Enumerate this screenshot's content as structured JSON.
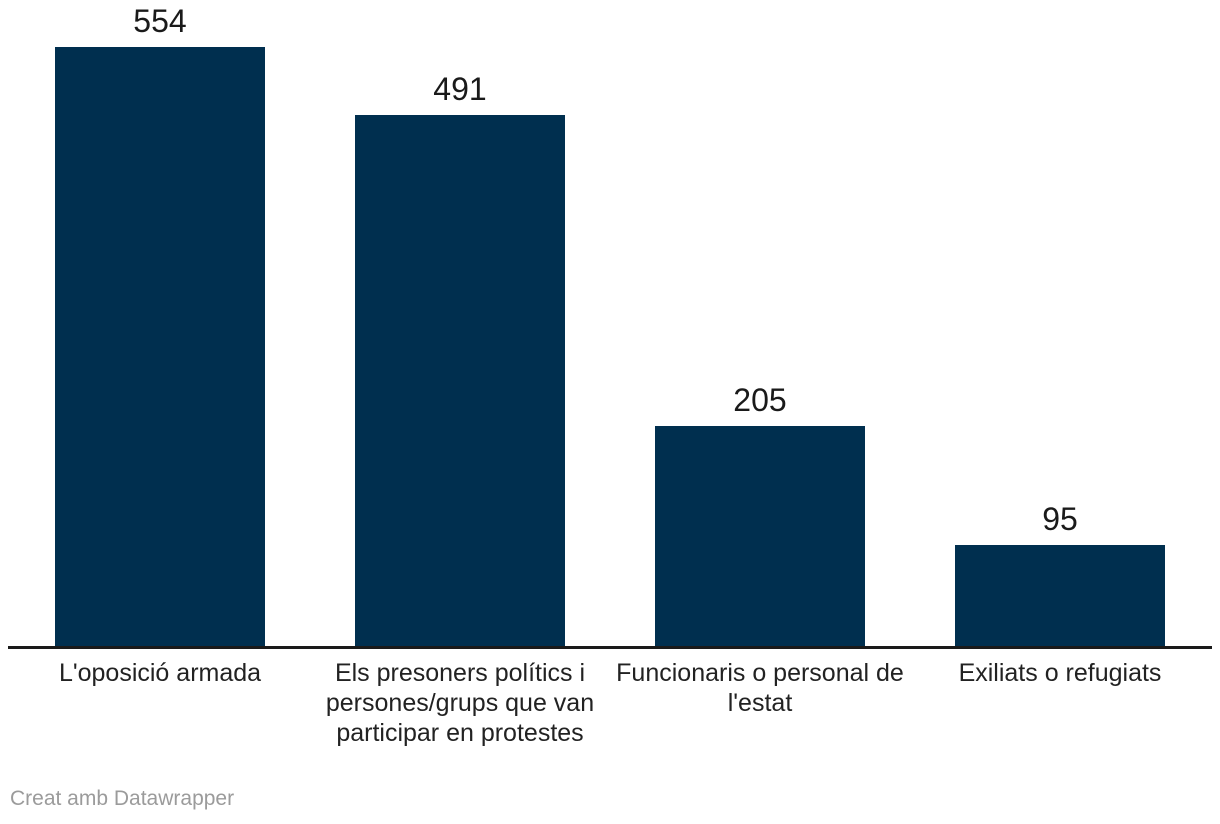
{
  "chart_data": {
    "type": "bar",
    "categories": [
      "L'oposició armada",
      "Els presoners polítics i persones/grups que van participar en protestes",
      "Funcionaris o personal de l'estat",
      "Exiliats o refugiats"
    ],
    "values": [
      554,
      491,
      205,
      95
    ],
    "title": "",
    "xlabel": "",
    "ylabel": "",
    "ylim": [
      0,
      554
    ],
    "grid": false,
    "legend": false,
    "value_labels_shown": true,
    "bar_color": "#002f4f",
    "value_label_color": "#1a1a1a",
    "category_label_color": "#222222",
    "axis_line_color": "#1a1a1a"
  },
  "footer": {
    "credit": "Creat amb Datawrapper",
    "credit_color": "#9b9b9b"
  }
}
